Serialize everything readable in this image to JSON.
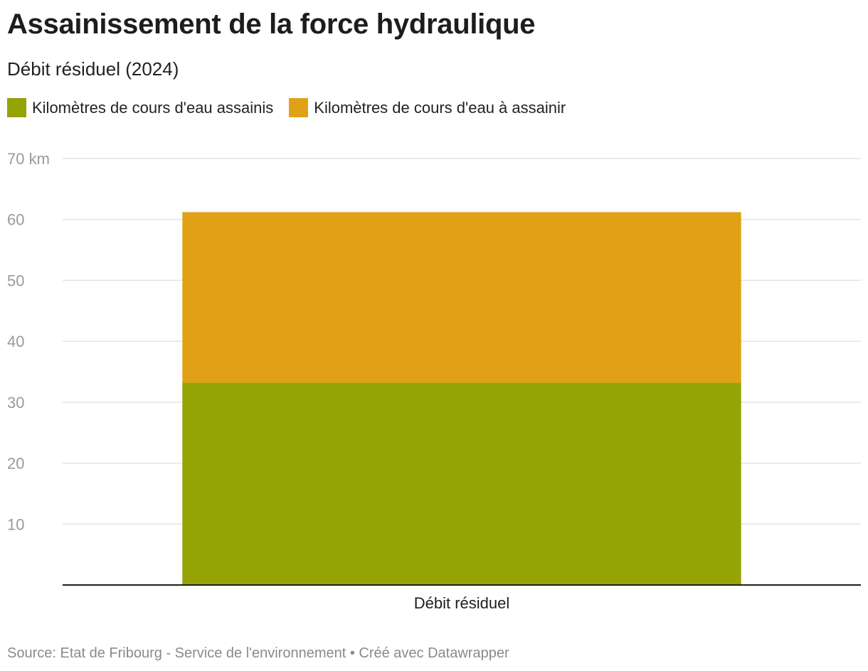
{
  "title": "Assainissement de la force hydraulique",
  "subtitle": "Débit résiduel (2024)",
  "footer": "Source: Etat de Fribourg - Service de l'environnement • Créé avec Datawrapper",
  "chart_data": {
    "type": "bar",
    "stacked": true,
    "categories": [
      "Débit résiduel"
    ],
    "series": [
      {
        "name": "Kilomètres de cours d'eau assainis",
        "values": [
          33.2
        ],
        "color": "#95a305"
      },
      {
        "name": "Kilomètres de cours d'eau à assainir",
        "values": [
          28.0
        ],
        "color": "#e0a117"
      }
    ],
    "ylim": [
      0,
      70
    ],
    "y_ticks": [
      {
        "value": 10,
        "label": "10"
      },
      {
        "value": 20,
        "label": "20"
      },
      {
        "value": 30,
        "label": "30"
      },
      {
        "value": 40,
        "label": "40"
      },
      {
        "value": 50,
        "label": "50"
      },
      {
        "value": 60,
        "label": "60"
      },
      {
        "value": 70,
        "label": "70 km"
      }
    ],
    "grid": true,
    "legend_position": "top-left"
  }
}
